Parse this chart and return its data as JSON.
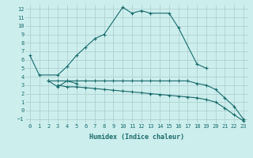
{
  "xlabel": "Humidex (Indice chaleur)",
  "bg_color": "#cceeed",
  "line_color": "#1a6b6b",
  "grid_color": "#b8d8d8",
  "xlim": [
    -0.5,
    23.5
  ],
  "ylim": [
    -1.5,
    12.5
  ],
  "xticks": [
    0,
    1,
    2,
    3,
    4,
    5,
    6,
    7,
    8,
    9,
    10,
    11,
    12,
    13,
    14,
    15,
    16,
    17,
    18,
    19,
    20,
    21,
    22,
    23
  ],
  "yticks": [
    -1,
    0,
    1,
    2,
    3,
    4,
    5,
    6,
    7,
    8,
    9,
    10,
    11,
    12
  ],
  "line1_x": [
    0,
    1,
    3,
    4,
    5,
    6,
    7,
    8,
    10,
    11,
    12,
    13,
    15,
    16,
    18,
    19
  ],
  "line1_y": [
    6.5,
    4.2,
    4.2,
    5.2,
    6.5,
    7.5,
    8.5,
    9.0,
    12.2,
    11.5,
    11.8,
    11.5,
    11.5,
    9.8,
    5.5,
    5.0
  ],
  "line2_x": [
    2,
    3,
    4,
    5
  ],
  "line2_y": [
    3.5,
    2.8,
    3.5,
    3.2
  ],
  "line3_x": [
    2,
    3,
    4,
    5,
    6,
    7,
    8,
    9,
    10,
    11,
    12,
    13,
    14,
    15,
    16,
    17,
    18,
    19,
    20,
    21,
    22,
    23
  ],
  "line3_y": [
    3.5,
    3.5,
    3.5,
    3.5,
    3.5,
    3.5,
    3.5,
    3.5,
    3.5,
    3.5,
    3.5,
    3.5,
    3.5,
    3.5,
    3.5,
    3.5,
    3.2,
    3.0,
    2.5,
    1.5,
    0.5,
    -1.0
  ],
  "line4_x": [
    3,
    4,
    5,
    6,
    7,
    8,
    9,
    10,
    11,
    12,
    13,
    14,
    15,
    16,
    17,
    18,
    19,
    20,
    21,
    22,
    23
  ],
  "line4_y": [
    3.0,
    2.8,
    2.8,
    2.7,
    2.6,
    2.5,
    2.4,
    2.3,
    2.2,
    2.1,
    2.0,
    1.9,
    1.8,
    1.7,
    1.6,
    1.5,
    1.3,
    1.0,
    0.3,
    -0.5,
    -1.2
  ]
}
